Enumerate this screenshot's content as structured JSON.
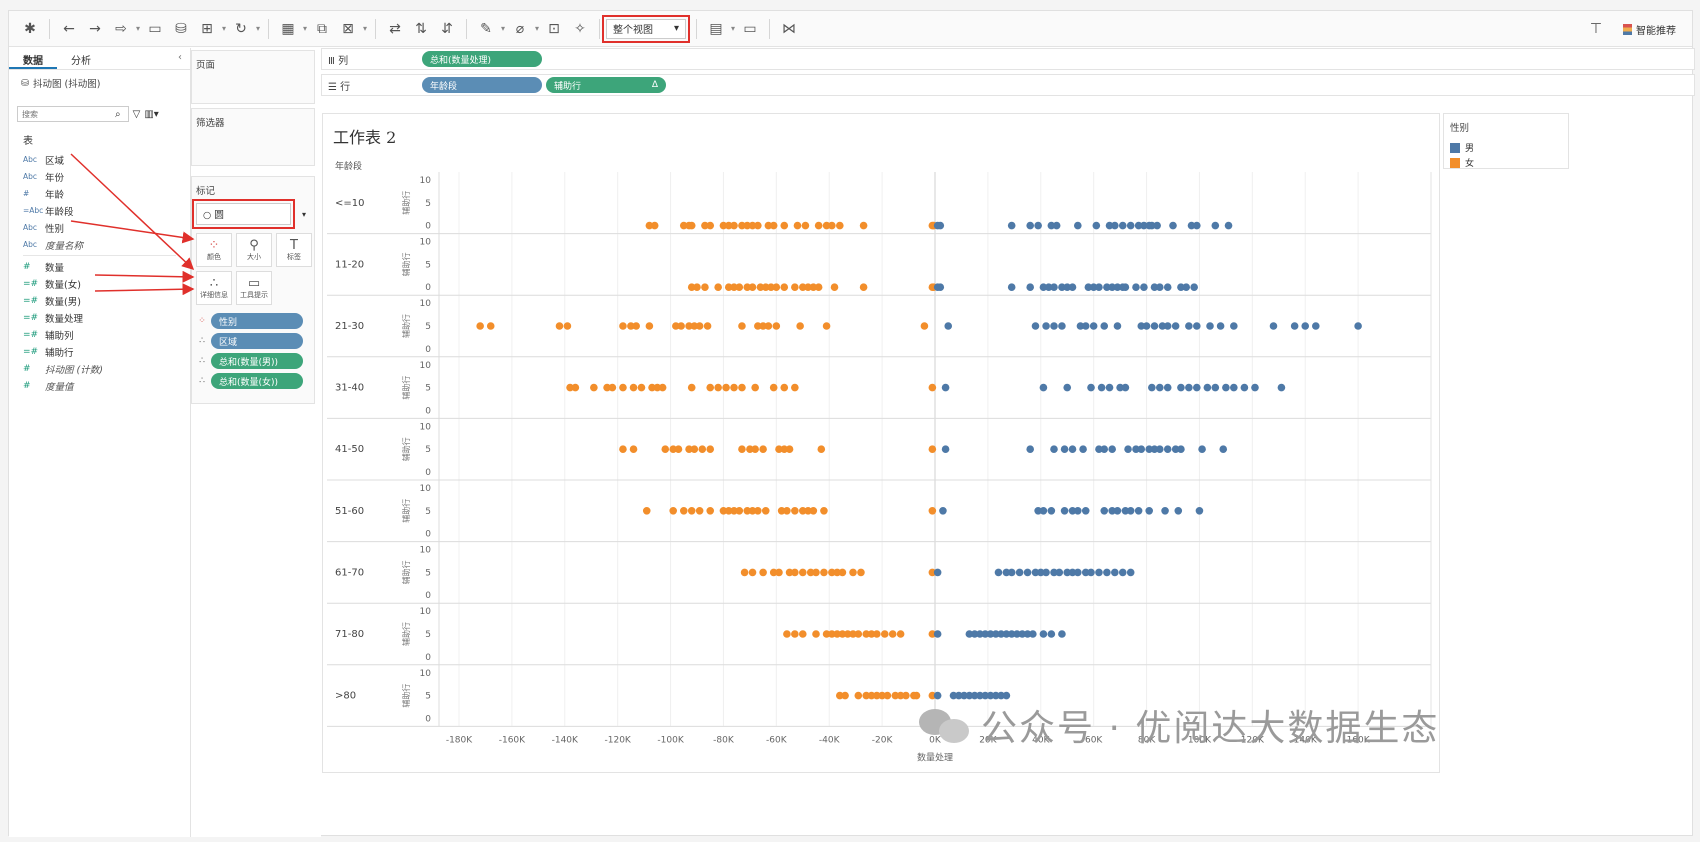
{
  "toolbar": {
    "view_select": "整个视图",
    "smart_recommend": "智能推荐",
    "icons": [
      "tableau-logo-icon",
      "back-icon",
      "forward-icon",
      "redo-icon",
      "save-icon",
      "new-datasource-icon",
      "new-sheet-icon",
      "refresh-icon",
      "chart-icon",
      "duplicate-icon",
      "clear-icon",
      "swap-icon",
      "sort-asc-icon",
      "sort-desc-icon",
      "highlight-icon",
      "group-icon",
      "label-icon",
      "pin-icon",
      "fit-icon",
      "presentation-icon",
      "share-icon",
      "pin-right-icon"
    ]
  },
  "left_panel": {
    "tabs": [
      "数据",
      "分析"
    ],
    "datasource": "抖动图 (抖动图)",
    "search_placeholder": "搜索",
    "table_header": "表",
    "dimensions": [
      {
        "type": "Abc",
        "name": "区域"
      },
      {
        "type": "Abc",
        "name": "年份"
      },
      {
        "type": "#",
        "name": "年龄"
      },
      {
        "type": "=Abc",
        "name": "年龄段"
      },
      {
        "type": "Abc",
        "name": "性别"
      },
      {
        "type": "Abc",
        "name": "度量名称",
        "italic": true
      }
    ],
    "measures": [
      {
        "type": "#",
        "name": "数量"
      },
      {
        "type": "=#",
        "name": "数量(女)"
      },
      {
        "type": "=#",
        "name": "数量(男)"
      },
      {
        "type": "=#",
        "name": "数量处理"
      },
      {
        "type": "=#",
        "name": "辅助列"
      },
      {
        "type": "=#",
        "name": "辅助行"
      },
      {
        "type": "#",
        "name": "抖动图 (计数)",
        "italic": true
      },
      {
        "type": "#",
        "name": "度量值",
        "italic": true
      }
    ]
  },
  "cards": {
    "pages": "页面",
    "filters": "筛选器",
    "marks": "标记",
    "mark_type": "圆",
    "mark_buttons": [
      {
        "icon": "color-icon",
        "label": "颜色"
      },
      {
        "icon": "size-icon",
        "label": "大小"
      },
      {
        "icon": "text-icon",
        "label": "标签"
      },
      {
        "icon": "detail-icon",
        "label": "详细信息"
      },
      {
        "icon": "tooltip-icon",
        "label": "工具提示"
      }
    ],
    "mark_pills": [
      {
        "icon": "color-icon",
        "label": "性别",
        "kind": "dim"
      },
      {
        "icon": "detail-icon",
        "label": "区域",
        "kind": "dim"
      },
      {
        "icon": "detail-icon",
        "label": "总和(数量(男))",
        "kind": "measure"
      },
      {
        "icon": "detail-icon",
        "label": "总和(数量(女))",
        "kind": "measure"
      }
    ]
  },
  "shelves": {
    "columns_label": "列",
    "rows_label": "行",
    "columns": [
      "总和(数量处理)"
    ],
    "rows": [
      "年龄段",
      "辅助行"
    ],
    "rows_delta": "Δ"
  },
  "worksheet": {
    "title": "工作表 2",
    "row_header": "年龄段",
    "axis_label_y": "辅助行",
    "xlabel": "数量处理"
  },
  "legend": {
    "title": "性别",
    "items": [
      {
        "label": "男",
        "color": "#4e79a7"
      },
      {
        "label": "女",
        "color": "#f28e2b"
      }
    ]
  },
  "watermark": "公众号 · 优阅达大数据生态",
  "chart_data": {
    "type": "scatter",
    "xlabel": "数量处理",
    "xticks": [
      "-180K",
      "-160K",
      "-140K",
      "-120K",
      "-100K",
      "-80K",
      "-60K",
      "-40K",
      "-20K",
      "0K",
      "20K",
      "40K",
      "60K",
      "80K",
      "100K",
      "120K",
      "140K",
      "160K"
    ],
    "xlim": [
      -180000,
      180000
    ],
    "ylim": [
      0,
      10
    ],
    "yticks": [
      0,
      5,
      10
    ],
    "colors": {
      "男": "#4e79a7",
      "女": "#f28e2b"
    },
    "panels": [
      {
        "label": "<=10",
        "y": 0,
        "female": [
          -108,
          -106,
          -95,
          -93,
          -92,
          -87,
          -85,
          -80,
          -78,
          -76,
          -73,
          -71,
          -69,
          -67,
          -63,
          -61,
          -57,
          -52,
          -49,
          -44,
          -41,
          -39,
          -36,
          -27,
          -1,
          -0.5
        ],
        "male": [
          1,
          2,
          29,
          36,
          39,
          44,
          46,
          54,
          61,
          66,
          68,
          71,
          74,
          77,
          79,
          81,
          82,
          84,
          90,
          97,
          99,
          106,
          111
        ]
      },
      {
        "label": "11-20",
        "y": 0,
        "female": [
          -92,
          -90,
          -87,
          -82,
          -78,
          -76,
          -74,
          -71,
          -69,
          -66,
          -64,
          -62,
          -60,
          -57,
          -53,
          -50,
          -48,
          -46,
          -44,
          -38,
          -27,
          -1,
          -0.5
        ],
        "male": [
          1,
          2,
          29,
          36,
          41,
          43,
          45,
          48,
          50,
          52,
          58,
          60,
          62,
          65,
          67,
          69,
          71,
          72,
          76,
          79,
          83,
          85,
          88,
          93,
          95,
          98
        ]
      },
      {
        "label": "21-30",
        "y": 5,
        "female": [
          -172,
          -168,
          -142,
          -139,
          -118,
          -115,
          -113,
          -108,
          -98,
          -96,
          -93,
          -91,
          -89,
          -86,
          -73,
          -67,
          -65,
          -63,
          -60,
          -51,
          -41,
          -4
        ],
        "male": [
          5,
          38,
          42,
          45,
          48,
          55,
          57,
          60,
          64,
          69,
          78,
          80,
          83,
          86,
          88,
          91,
          96,
          99,
          104,
          108,
          113,
          128,
          136,
          140,
          144,
          160
        ]
      },
      {
        "label": "31-40",
        "y": 5,
        "female": [
          -138,
          -136,
          -129,
          -124,
          -122,
          -118,
          -114,
          -111,
          -107,
          -105,
          -103,
          -92,
          -85,
          -82,
          -79,
          -76,
          -73,
          -68,
          -61,
          -57,
          -53,
          -1
        ],
        "male": [
          4,
          41,
          50,
          59,
          63,
          66,
          70,
          72,
          82,
          85,
          88,
          93,
          96,
          99,
          103,
          106,
          110,
          113,
          117,
          121,
          131
        ]
      },
      {
        "label": "41-50",
        "y": 5,
        "female": [
          -118,
          -114,
          -102,
          -99,
          -97,
          -93,
          -91,
          -88,
          -85,
          -73,
          -70,
          -68,
          -65,
          -59,
          -57,
          -55,
          -43,
          -1
        ],
        "male": [
          4,
          36,
          45,
          49,
          52,
          56,
          62,
          64,
          67,
          73,
          76,
          78,
          81,
          83,
          85,
          88,
          91,
          93,
          101,
          109
        ]
      },
      {
        "label": "51-60",
        "y": 5,
        "female": [
          -109,
          -99,
          -95,
          -92,
          -89,
          -85,
          -80,
          -78,
          -76,
          -74,
          -71,
          -69,
          -67,
          -64,
          -58,
          -56,
          -53,
          -50,
          -48,
          -46,
          -42,
          -1
        ],
        "male": [
          3,
          39,
          41,
          44,
          49,
          52,
          54,
          57,
          64,
          67,
          69,
          72,
          74,
          77,
          81,
          87,
          92,
          100
        ]
      },
      {
        "label": "61-70",
        "y": 5,
        "female": [
          -72,
          -69,
          -65,
          -61,
          -59,
          -55,
          -53,
          -50,
          -47,
          -45,
          -42,
          -39,
          -37,
          -35,
          -31,
          -28,
          -1
        ],
        "male": [
          1,
          24,
          27,
          29,
          32,
          35,
          38,
          40,
          42,
          45,
          47,
          50,
          52,
          54,
          57,
          59,
          62,
          65,
          68,
          71,
          74
        ]
      },
      {
        "label": "71-80",
        "y": 5,
        "female": [
          -56,
          -53,
          -50,
          -45,
          -41,
          -39,
          -37,
          -35,
          -33,
          -31,
          -29,
          -26,
          -24,
          -22,
          -19,
          -16,
          -13,
          -1
        ],
        "male": [
          1,
          13,
          15,
          17,
          19,
          21,
          23,
          25,
          27,
          29,
          31,
          33,
          35,
          37,
          41,
          44,
          48
        ]
      },
      {
        "label": ">80",
        "y": 5,
        "female": [
          -36,
          -34,
          -29,
          -26,
          -24,
          -22,
          -20,
          -18,
          -15,
          -13,
          -11,
          -8,
          -7,
          -1
        ],
        "male": [
          1,
          7,
          9,
          11,
          13,
          15,
          17,
          19,
          21,
          23,
          25,
          27
        ]
      }
    ]
  }
}
